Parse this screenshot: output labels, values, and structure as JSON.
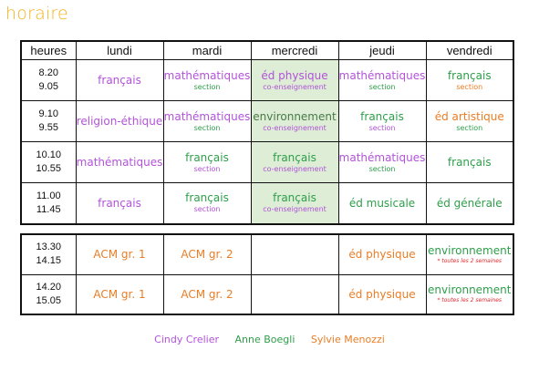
{
  "title": "horaire",
  "colors": {
    "title": "#f5b21c",
    "purple": "#b253d9",
    "green": "#2e9e4a",
    "orange": "#ea7d26",
    "mercredi_bg": "#ddedd6",
    "note_red": "#e0282b"
  },
  "headers": [
    "heures",
    "lundi",
    "mardi",
    "mercredi",
    "jeudi",
    "vendredi"
  ],
  "morning": [
    {
      "time": [
        "8.20",
        "9.05"
      ],
      "cells": [
        {
          "main": "français",
          "color": "purple"
        },
        {
          "main": "mathématiques",
          "sub": "section",
          "color": "purple",
          "subColor": "green"
        },
        {
          "main": "éd physique",
          "sub": "co-enseignement",
          "color": "purple",
          "subColor": "purple"
        },
        {
          "main": "mathématiques",
          "sub": "section",
          "color": "purple",
          "subColor": "green"
        },
        {
          "main": "français",
          "sub": "section",
          "color": "green",
          "subColor": "orange"
        }
      ]
    },
    {
      "time": [
        "9.10",
        "9.55"
      ],
      "cells": [
        {
          "main": "religion-éthique",
          "color": "purple"
        },
        {
          "main": "mathématiques",
          "sub": "section",
          "color": "purple",
          "subColor": "green"
        },
        {
          "main": "environnement",
          "sub": "co-enseignement",
          "color": "darkgreen",
          "subColor": "purple"
        },
        {
          "main": "français",
          "sub": "section",
          "color": "green",
          "subColor": "purple"
        },
        {
          "main": "éd artistique",
          "sub": "section",
          "color": "orange",
          "subColor": "green"
        }
      ]
    },
    {
      "time": [
        "10.10",
        "10.55"
      ],
      "cells": [
        {
          "main": "mathématiques",
          "color": "purple"
        },
        {
          "main": "français",
          "sub": "section",
          "color": "green",
          "subColor": "purple"
        },
        {
          "main": "français",
          "sub": "co-enseignement",
          "color": "green",
          "subColor": "purple"
        },
        {
          "main": "mathématiques",
          "sub": "section",
          "color": "purple",
          "subColor": "green"
        },
        {
          "main": "français",
          "color": "green"
        }
      ]
    },
    {
      "time": [
        "11.00",
        "11.45"
      ],
      "cells": [
        {
          "main": "français",
          "color": "purple"
        },
        {
          "main": "français",
          "sub": "section",
          "color": "green",
          "subColor": "purple"
        },
        {
          "main": "français",
          "sub": "co-enseignement",
          "color": "green",
          "subColor": "purple"
        },
        {
          "main": "éd musicale",
          "color": "green"
        },
        {
          "main": "éd générale",
          "color": "green"
        }
      ]
    }
  ],
  "afternoon": [
    {
      "time": [
        "13.30",
        "14.15"
      ],
      "cells": [
        {
          "main": "ACM gr. 1",
          "color": "orange"
        },
        {
          "main": "ACM gr. 2",
          "color": "orange"
        },
        {
          "main": ""
        },
        {
          "main": "éd physique",
          "color": "orange"
        },
        {
          "main": "environnement",
          "note": "* toutes les 2 semaines",
          "color": "green"
        }
      ]
    },
    {
      "time": [
        "14.20",
        "15.05"
      ],
      "cells": [
        {
          "main": "ACM gr. 1",
          "color": "orange"
        },
        {
          "main": "ACM gr. 2",
          "color": "orange"
        },
        {
          "main": ""
        },
        {
          "main": "éd physique",
          "color": "orange"
        },
        {
          "main": "environnement",
          "note": "* toutes les 2 semaines",
          "color": "green"
        }
      ]
    }
  ],
  "legend": [
    {
      "name": "Cindy Crelier",
      "color": "purple"
    },
    {
      "name": "Anne Boegli",
      "color": "green"
    },
    {
      "name": "Sylvie Menozzi",
      "color": "orange"
    }
  ]
}
